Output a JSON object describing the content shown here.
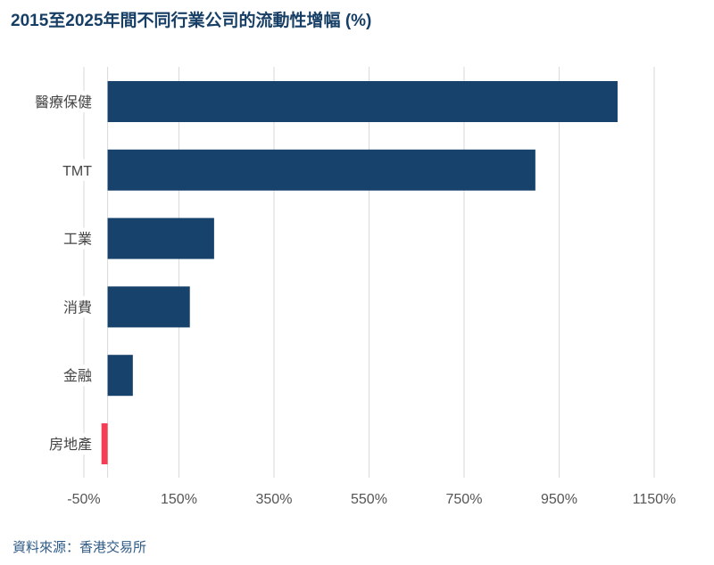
{
  "chart_data": {
    "type": "bar",
    "orientation": "horizontal",
    "title": "2015至2025年間不同行業公司的流動性增幅 (%)",
    "categories": [
      "醫療保健",
      "TMT",
      "工業",
      "消費",
      "金融",
      "房地產"
    ],
    "values": [
      1073,
      900,
      224,
      173,
      53,
      -13
    ],
    "xlim": [
      -60,
      1210
    ],
    "xticks": [
      -50,
      150,
      350,
      550,
      750,
      950,
      1150
    ],
    "xtick_labels": [
      "-50%",
      "150%",
      "350%",
      "550%",
      "750%",
      "950%",
      "1150%"
    ],
    "grid": "vertical",
    "colors": {
      "positive": "#16426b",
      "negative": "#f43c55"
    },
    "source": "資料來源：香港交易所"
  }
}
